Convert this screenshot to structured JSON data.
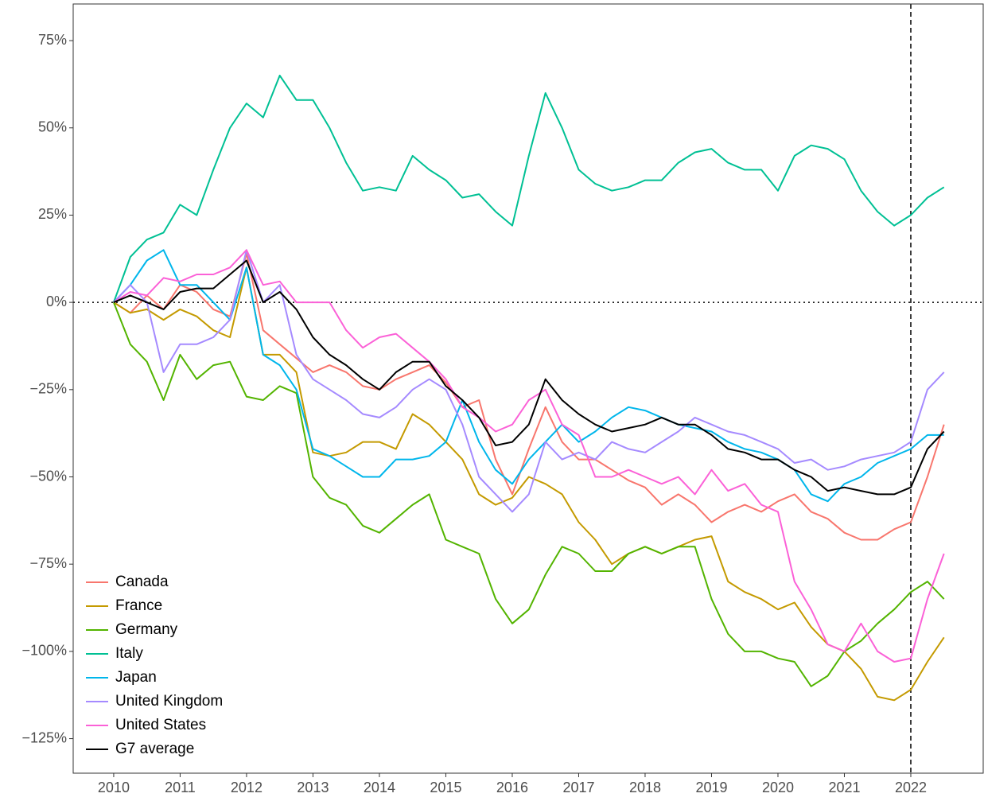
{
  "chart_data": {
    "type": "line",
    "x": [
      2010,
      2010.25,
      2010.5,
      2010.75,
      2011,
      2011.25,
      2011.5,
      2011.75,
      2012,
      2012.25,
      2012.5,
      2012.75,
      2013,
      2013.25,
      2013.5,
      2013.75,
      2014,
      2014.25,
      2014.5,
      2014.75,
      2015,
      2015.25,
      2015.5,
      2015.75,
      2016,
      2016.25,
      2016.5,
      2016.75,
      2017,
      2017.25,
      2017.5,
      2017.75,
      2018,
      2018.25,
      2018.5,
      2018.75,
      2019,
      2019.25,
      2019.5,
      2019.75,
      2020,
      2020.25,
      2020.5,
      2020.75,
      2021,
      2021.25,
      2021.5,
      2021.75,
      2022,
      2022.25,
      2022.5
    ],
    "series": [
      {
        "name": "Canada",
        "color": "#F8766D",
        "values": [
          0,
          -3,
          2,
          -2,
          5,
          3,
          -2,
          -4,
          14,
          -8,
          -12,
          -16,
          -20,
          -18,
          -20,
          -24,
          -25,
          -22,
          -20,
          -18,
          -23,
          -30,
          -28,
          -45,
          -55,
          -42,
          -30,
          -40,
          -45,
          -45,
          -48,
          -51,
          -53,
          -58,
          -55,
          -58,
          -63,
          -60,
          -58,
          -60,
          -57,
          -55,
          -60,
          -62,
          -66,
          -68,
          -68,
          -65,
          -63,
          -50,
          -35
        ]
      },
      {
        "name": "France",
        "color": "#C49A00",
        "values": [
          0,
          -3,
          -2,
          -5,
          -2,
          -4,
          -8,
          -10,
          10,
          -15,
          -15,
          -20,
          -43,
          -44,
          -43,
          -40,
          -40,
          -42,
          -32,
          -35,
          -40,
          -45,
          -55,
          -58,
          -56,
          -50,
          -52,
          -55,
          -63,
          -68,
          -75,
          -72,
          -70,
          -72,
          -70,
          -68,
          -67,
          -80,
          -83,
          -85,
          -88,
          -86,
          -93,
          -98,
          -100,
          -105,
          -113,
          -114,
          -111,
          -103,
          -96
        ]
      },
      {
        "name": "Germany",
        "color": "#53B400",
        "values": [
          0,
          -12,
          -17,
          -28,
          -15,
          -22,
          -18,
          -17,
          -27,
          -28,
          -24,
          -26,
          -50,
          -56,
          -58,
          -64,
          -66,
          -62,
          -58,
          -55,
          -68,
          -70,
          -72,
          -85,
          -92,
          -88,
          -78,
          -70,
          -72,
          -77,
          -77,
          -72,
          -70,
          -72,
          -70,
          -70,
          -85,
          -95,
          -100,
          -100,
          -102,
          -103,
          -110,
          -107,
          -100,
          -97,
          -92,
          -88,
          -83,
          -80,
          -85
        ]
      },
      {
        "name": "Italy",
        "color": "#00C094",
        "values": [
          0,
          13,
          18,
          20,
          28,
          25,
          38,
          50,
          57,
          53,
          65,
          58,
          58,
          50,
          40,
          32,
          33,
          32,
          42,
          38,
          35,
          30,
          31,
          26,
          22,
          42,
          60,
          50,
          38,
          34,
          32,
          33,
          35,
          35,
          40,
          43,
          44,
          40,
          38,
          38,
          32,
          42,
          45,
          44,
          41,
          32,
          26,
          22,
          25,
          30,
          33
        ]
      },
      {
        "name": "Japan",
        "color": "#00B6EB",
        "values": [
          0,
          5,
          12,
          15,
          5,
          5,
          0,
          -5,
          10,
          -15,
          -18,
          -25,
          -42,
          -44,
          -47,
          -50,
          -50,
          -45,
          -45,
          -44,
          -40,
          -28,
          -40,
          -48,
          -52,
          -45,
          -40,
          -35,
          -40,
          -37,
          -33,
          -30,
          -31,
          -33,
          -35,
          -36,
          -37,
          -40,
          -42,
          -43,
          -45,
          -48,
          -55,
          -57,
          -52,
          -50,
          -46,
          -44,
          -42,
          -38,
          -38
        ]
      },
      {
        "name": "United Kingdom",
        "color": "#A58AFF",
        "values": [
          0,
          5,
          0,
          -20,
          -12,
          -12,
          -10,
          -5,
          15,
          0,
          5,
          -15,
          -22,
          -25,
          -28,
          -32,
          -33,
          -30,
          -25,
          -22,
          -25,
          -35,
          -50,
          -55,
          -60,
          -55,
          -40,
          -45,
          -43,
          -45,
          -40,
          -42,
          -43,
          -40,
          -37,
          -33,
          -35,
          -37,
          -38,
          -40,
          -42,
          -46,
          -45,
          -48,
          -47,
          -45,
          -44,
          -43,
          -40,
          -25,
          -20
        ]
      },
      {
        "name": "United States",
        "color": "#FB61D7",
        "values": [
          0,
          3,
          2,
          7,
          6,
          8,
          8,
          10,
          15,
          5,
          6,
          0,
          0,
          0,
          -8,
          -13,
          -10,
          -9,
          -13,
          -17,
          -22,
          -30,
          -33,
          -37,
          -35,
          -28,
          -25,
          -35,
          -38,
          -50,
          -50,
          -48,
          -50,
          -52,
          -50,
          -55,
          -48,
          -54,
          -52,
          -58,
          -60,
          -80,
          -88,
          -98,
          -100,
          -92,
          -100,
          -103,
          -102,
          -85,
          -72
        ]
      },
      {
        "name": "G7 average",
        "color": "#000000",
        "values": [
          0,
          2,
          0,
          -2,
          3,
          4,
          4,
          8,
          12,
          0,
          3,
          -2,
          -10,
          -15,
          -18,
          -22,
          -25,
          -20,
          -17,
          -17,
          -24,
          -28,
          -33,
          -41,
          -40,
          -35,
          -22,
          -28,
          -32,
          -35,
          -37,
          -36,
          -35,
          -33,
          -35,
          -35,
          -38,
          -42,
          -43,
          -45,
          -45,
          -48,
          -50,
          -54,
          -53,
          -54,
          -55,
          -55,
          -53,
          -42,
          -37
        ]
      }
    ],
    "xlim": [
      2009.39,
      2023.09
    ],
    "xticks": [
      2010,
      2011,
      2012,
      2013,
      2014,
      2015,
      2016,
      2017,
      2018,
      2019,
      2020,
      2021,
      2022
    ],
    "ylim": [
      -134.9,
      85.5
    ],
    "yticks": [
      {
        "value": -125,
        "label": "−125%"
      },
      {
        "value": -100,
        "label": "−100%"
      },
      {
        "value": -75,
        "label": "−75%"
      },
      {
        "value": -50,
        "label": "−50%"
      },
      {
        "value": -25,
        "label": "−25%"
      },
      {
        "value": 0,
        "label": "0%"
      },
      {
        "value": 25,
        "label": "25%"
      },
      {
        "value": 50,
        "label": "50%"
      },
      {
        "value": 75,
        "label": "75%"
      }
    ],
    "hline": 0,
    "vline": 2022,
    "legend": "bottom-left",
    "grid": false
  }
}
